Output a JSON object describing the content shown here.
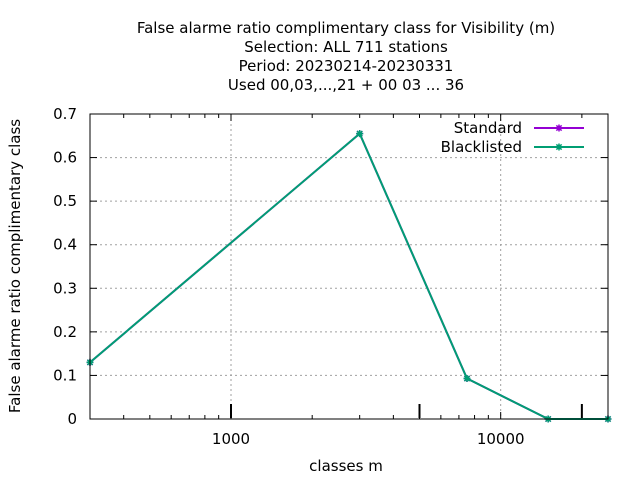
{
  "chart_data": {
    "type": "line",
    "title_lines": [
      "False alarme ratio complimentary class  for Visibility (m)",
      "Selection: ALL    711 stations",
      "Period: 20230214-20230331",
      "Used  00,03,...,21  + 00 03 ... 36"
    ],
    "xlabel": "classes m",
    "ylabel": "False alarme ratio complimentary class",
    "x_scale": "log",
    "xlim": [
      300,
      25000
    ],
    "ylim": [
      0,
      0.7
    ],
    "x_ticks": [
      1000,
      10000
    ],
    "x_tick_labels": [
      "1000",
      "10000"
    ],
    "y_ticks": [
      0,
      0.1,
      0.2,
      0.3,
      0.4,
      0.5,
      0.6,
      0.7
    ],
    "y_tick_labels": [
      "0",
      "0.1",
      "0.2",
      "0.3",
      "0.4",
      "0.5",
      "0.6",
      "0.7"
    ],
    "extra_x_marks": [
      1000,
      5000,
      20000
    ],
    "grid": true,
    "legend_position": "top-right",
    "series": [
      {
        "name": "Standard",
        "color": "#9400d3",
        "x": [
          300,
          3000,
          7500,
          15000,
          25000
        ],
        "y": [
          0.13,
          0.655,
          0.093,
          0.0,
          0.0
        ]
      },
      {
        "name": "Blacklisted",
        "color": "#009e73",
        "x": [
          300,
          3000,
          7500,
          15000,
          25000
        ],
        "y": [
          0.13,
          0.655,
          0.093,
          0.0,
          0.0
        ]
      }
    ]
  }
}
